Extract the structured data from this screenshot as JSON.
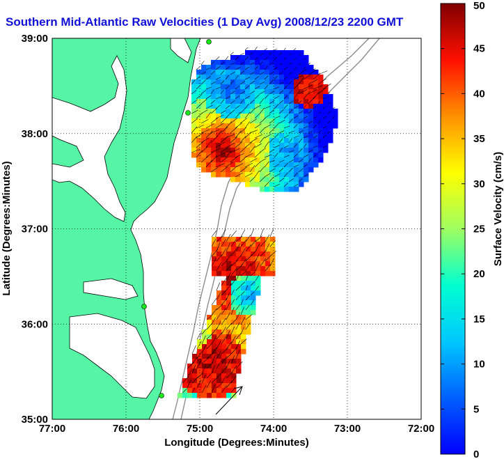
{
  "title": "Southern Mid-Atlantic Raw Velocities (1 Day Avg) 2008/12/23 2200 GMT",
  "map": {
    "xlabel": "Longitude (Degrees:Minutes)",
    "ylabel": "Latitude (Degrees:Minutes)",
    "x_ticks": [
      "77:00",
      "76:00",
      "75:00",
      "74:00",
      "73:00",
      "72:00"
    ],
    "y_ticks": [
      "39:00",
      "38:00",
      "37:00",
      "36:00",
      "35:00"
    ],
    "lon_range": [
      -77,
      -72
    ],
    "lat_range": [
      35,
      39
    ],
    "land_color": "#55f5a5",
    "grid": "dotted"
  },
  "colorbar": {
    "label": "Surface Velocity (cm/s)",
    "ticks": [
      "50",
      "45",
      "40",
      "35",
      "30",
      "25",
      "20",
      "15",
      "10",
      "5",
      "0"
    ],
    "range": [
      0,
      50
    ],
    "colormap": "jet"
  },
  "fields": {
    "north": {
      "center_lon": -74.5,
      "center_lat": 38.0,
      "peak_speed": 50,
      "description": "high velocity core southwest, low velocity east"
    },
    "south": {
      "center_lon": -74.8,
      "center_lat": 35.9,
      "peak_speed": 50
    }
  },
  "icons": {
    "reference_arrow": "arrow-icon",
    "station_marker": "circle-icon"
  }
}
